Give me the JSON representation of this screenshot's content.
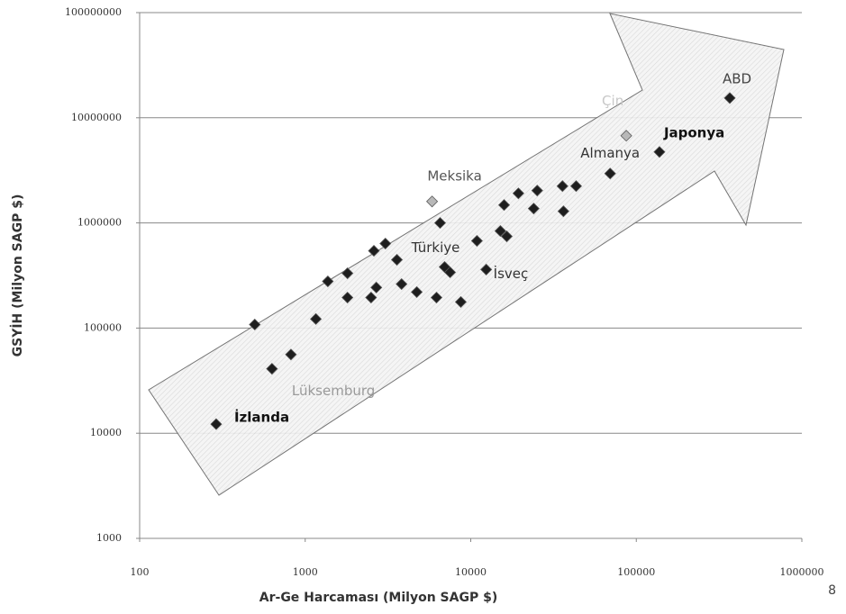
{
  "chart_data": {
    "type": "scatter",
    "x_label": "Ar-Ge Harcaması (Milyon SAGP $)",
    "y_label": "GSYİH (Milyon SAGP $)",
    "x_scale": "log",
    "y_scale": "log",
    "xlim": [
      100,
      1000000
    ],
    "ylim": [
      1000,
      100000000
    ],
    "xticks": [
      100,
      1000,
      10000,
      100000,
      1000000
    ],
    "yticks": [
      1000,
      10000,
      100000,
      1000000,
      10000000,
      100000000
    ],
    "grid": true,
    "series": [
      {
        "color": "#1e1e1e",
        "x": [
          290,
          496,
          630,
          820,
          1160,
          1370,
          1800,
          1800,
          2500,
          2690,
          2600,
          3050,
          3580,
          3820,
          4720,
          6210,
          6530,
          6950,
          7500,
          8710,
          10900,
          12400,
          15100,
          15900,
          16500,
          19400,
          24000,
          25200,
          35800,
          36300,
          43300,
          69500,
          138000,
          367000
        ],
        "values": [
          12200,
          108000,
          41000,
          56000,
          122000,
          278000,
          332000,
          195000,
          195000,
          243000,
          543000,
          636000,
          446000,
          262000,
          220000,
          195000,
          1000000,
          381000,
          339000,
          177000,
          675000,
          360000,
          838000,
          1480000,
          745000,
          1910000,
          1370000,
          2030000,
          2240000,
          1290000,
          2240000,
          2950000,
          4730000,
          15400000
        ],
        "labels": [
          "İzlanda",
          null,
          "Lüksemburg",
          null,
          null,
          null,
          null,
          null,
          null,
          null,
          null,
          null,
          null,
          null,
          null,
          null,
          "Türkiye",
          null,
          null,
          null,
          null,
          "İsveç",
          null,
          null,
          null,
          null,
          null,
          null,
          null,
          null,
          null,
          "Almanya",
          "Japonya",
          "ABD"
        ]
      },
      {
        "color": "#b8b8b8",
        "x": [
          5840,
          87000
        ],
        "values": [
          1600000,
          6750000
        ],
        "labels": [
          "Meksika",
          "Çin"
        ]
      }
    ]
  },
  "page_number": "8"
}
